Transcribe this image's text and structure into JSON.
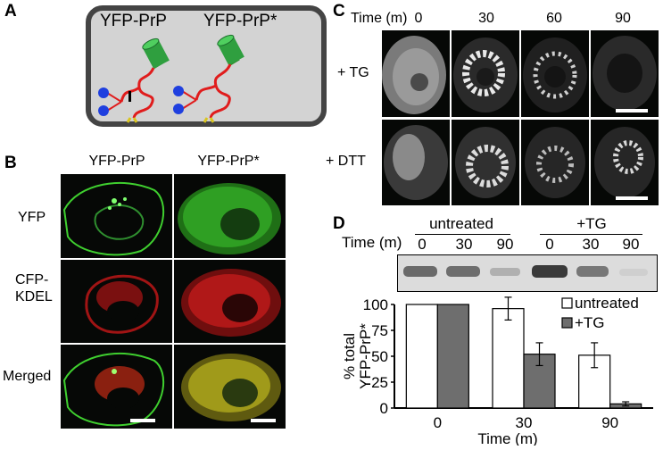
{
  "panels": {
    "A": "A",
    "B": "B",
    "C": "C",
    "D": "D"
  },
  "panel_a": {
    "label_prp": "YFP-PrP",
    "label_prp_star": "YFP-PrP*"
  },
  "panel_b": {
    "col_prp": "YFP-PrP",
    "col_prp_star": "YFP-PrP*",
    "row_yfp": "YFP",
    "row_cfp_line1": "CFP-",
    "row_cfp_line2": "KDEL",
    "row_merged": "Merged"
  },
  "panel_c": {
    "time_label": "Time (m)",
    "times": [
      "0",
      "30",
      "60",
      "90"
    ],
    "row_tg": "+ TG",
    "row_dtt": "+ DTT"
  },
  "panel_d": {
    "group_untreated": "untreated",
    "group_tg": "+TG",
    "time_label": "Time (m)",
    "lane_times": [
      "0",
      "30",
      "90",
      "0",
      "30",
      "90"
    ]
  },
  "chart_data": {
    "type": "bar",
    "title": "",
    "xlabel": "Time (m)",
    "ylabel_line1": "% total",
    "ylabel_line2": "YFP-PrP*",
    "categories": [
      "0",
      "30",
      "90"
    ],
    "ylim": [
      0,
      100
    ],
    "yticks": [
      "0",
      "25",
      "50",
      "75",
      "100"
    ],
    "series": [
      {
        "name": "untreated",
        "values": [
          100,
          96,
          51
        ],
        "errors": [
          0,
          11,
          12
        ],
        "color": "#ffffff"
      },
      {
        "name": "+TG",
        "values": [
          100,
          52,
          4
        ],
        "errors": [
          0,
          11,
          2
        ],
        "color": "#6e6e6e"
      }
    ],
    "legend": [
      "untreated",
      "+TG"
    ],
    "legend_position": "top-right"
  },
  "colors": {
    "yfp": "#3fcf2f",
    "cfp": "#e01c1c",
    "cell_bg": "#d3d3d3",
    "cell_border": "#444444"
  }
}
